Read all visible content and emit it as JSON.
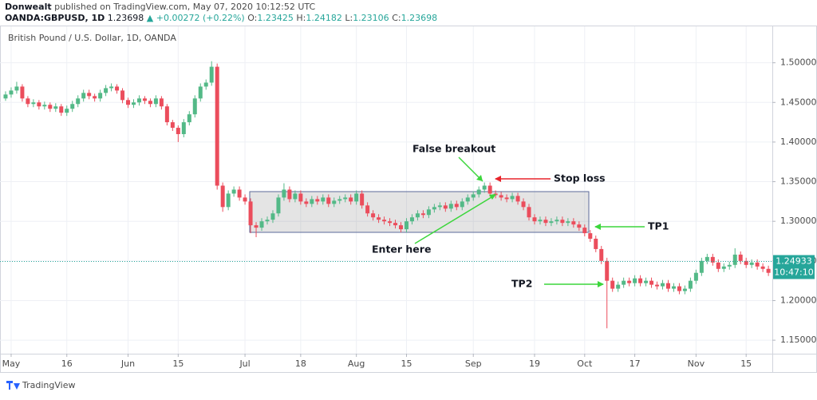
{
  "header": {
    "author": "Donwealt",
    "published": "published on TradingView.com, May 07, 2020 10:12:52 UTC",
    "symbol": "OANDA:GBPUSD, 1D",
    "last": "1.23698",
    "change": "▲ +0.00272 (+0.22%)",
    "o_label": "O:",
    "o": "1.23425",
    "h_label": "H:",
    "h": "1.24182",
    "l_label": "L:",
    "l": "1.23106",
    "c_label": "C:",
    "c": "1.23698"
  },
  "chart_data": {
    "type": "candlestick",
    "title": "British Pound / U.S. Dollar, 1D, OANDA",
    "up_color": "#53b987",
    "down_color": "#eb4d5c",
    "grid": true,
    "ylim": [
      1.136,
      1.549
    ],
    "yticks": [
      {
        "value": 1.5,
        "label": "1.50000"
      },
      {
        "value": 1.45,
        "label": "1.45000"
      },
      {
        "value": 1.4,
        "label": "1.40000"
      },
      {
        "value": 1.35,
        "label": "1.35000"
      },
      {
        "value": 1.3,
        "label": "1.30000"
      },
      {
        "value": 1.25,
        "label": "1.25000"
      },
      {
        "value": 1.2,
        "label": "1.20000"
      },
      {
        "value": 1.15,
        "label": "1.15000"
      }
    ],
    "xlim": [
      -1,
      137.7
    ],
    "xticks": [
      {
        "value": 1,
        "label": "May"
      },
      {
        "value": 11,
        "label": "16"
      },
      {
        "value": 22,
        "label": "Jun"
      },
      {
        "value": 31,
        "label": "15"
      },
      {
        "value": 43,
        "label": "Jul"
      },
      {
        "value": 53,
        "label": "18"
      },
      {
        "value": 63,
        "label": "Aug"
      },
      {
        "value": 72,
        "label": "15"
      },
      {
        "value": 84,
        "label": "Sep"
      },
      {
        "value": 95,
        "label": "19"
      },
      {
        "value": 104,
        "label": "Oct"
      },
      {
        "value": 113,
        "label": "17"
      },
      {
        "value": 124,
        "label": "Nov"
      },
      {
        "value": 133,
        "label": "15"
      }
    ],
    "last_price": {
      "value": 1.24933,
      "label": "1.24933"
    },
    "countdown": "10:47:10",
    "annotations": [
      "False breakout",
      "Stop loss",
      "TP1",
      "TP2",
      "Enter here"
    ],
    "ohlc": [
      [
        1.455,
        1.464,
        1.452,
        1.46
      ],
      [
        1.46,
        1.469,
        1.456,
        1.465
      ],
      [
        1.465,
        1.476,
        1.461,
        1.47
      ],
      [
        1.47,
        1.473,
        1.451,
        1.455
      ],
      [
        1.455,
        1.458,
        1.444,
        1.448
      ],
      [
        1.448,
        1.454,
        1.444,
        1.45
      ],
      [
        1.45,
        1.453,
        1.441,
        1.445
      ],
      [
        1.445,
        1.451,
        1.441,
        1.447
      ],
      [
        1.447,
        1.45,
        1.438,
        1.442
      ],
      [
        1.442,
        1.449,
        1.438,
        1.445
      ],
      [
        1.445,
        1.448,
        1.433,
        1.437
      ],
      [
        1.437,
        1.446,
        1.433,
        1.442
      ],
      [
        1.442,
        1.452,
        1.438,
        1.448
      ],
      [
        1.448,
        1.459,
        1.444,
        1.455
      ],
      [
        1.455,
        1.466,
        1.451,
        1.462
      ],
      [
        1.462,
        1.466,
        1.454,
        1.458
      ],
      [
        1.458,
        1.461,
        1.451,
        1.455
      ],
      [
        1.455,
        1.466,
        1.451,
        1.462
      ],
      [
        1.462,
        1.472,
        1.458,
        1.468
      ],
      [
        1.468,
        1.474,
        1.464,
        1.47
      ],
      [
        1.47,
        1.473,
        1.461,
        1.465
      ],
      [
        1.465,
        1.468,
        1.449,
        1.453
      ],
      [
        1.453,
        1.456,
        1.443,
        1.447
      ],
      [
        1.447,
        1.454,
        1.443,
        1.45
      ],
      [
        1.45,
        1.459,
        1.446,
        1.455
      ],
      [
        1.455,
        1.458,
        1.448,
        1.452
      ],
      [
        1.452,
        1.455,
        1.444,
        1.448
      ],
      [
        1.448,
        1.459,
        1.444,
        1.455
      ],
      [
        1.455,
        1.458,
        1.441,
        1.445
      ],
      [
        1.445,
        1.448,
        1.421,
        1.425
      ],
      [
        1.425,
        1.428,
        1.414,
        1.418
      ],
      [
        1.418,
        1.421,
        1.4,
        1.41
      ],
      [
        1.41,
        1.429,
        1.406,
        1.425
      ],
      [
        1.425,
        1.439,
        1.421,
        1.435
      ],
      [
        1.435,
        1.459,
        1.431,
        1.455
      ],
      [
        1.455,
        1.474,
        1.451,
        1.47
      ],
      [
        1.47,
        1.479,
        1.466,
        1.475
      ],
      [
        1.475,
        1.502,
        1.471,
        1.495
      ],
      [
        1.495,
        1.499,
        1.34,
        1.345
      ],
      [
        1.345,
        1.349,
        1.312,
        1.318
      ],
      [
        1.318,
        1.339,
        1.314,
        1.335
      ],
      [
        1.335,
        1.344,
        1.331,
        1.34
      ],
      [
        1.34,
        1.344,
        1.326,
        1.33
      ],
      [
        1.33,
        1.334,
        1.321,
        1.325
      ],
      [
        1.325,
        1.329,
        1.285,
        1.295
      ],
      [
        1.295,
        1.299,
        1.28,
        1.292
      ],
      [
        1.292,
        1.304,
        1.288,
        1.3
      ],
      [
        1.3,
        1.306,
        1.296,
        1.302
      ],
      [
        1.302,
        1.314,
        1.298,
        1.31
      ],
      [
        1.31,
        1.334,
        1.306,
        1.33
      ],
      [
        1.33,
        1.348,
        1.326,
        1.34
      ],
      [
        1.34,
        1.344,
        1.324,
        1.328
      ],
      [
        1.328,
        1.339,
        1.324,
        1.335
      ],
      [
        1.335,
        1.339,
        1.321,
        1.325
      ],
      [
        1.325,
        1.329,
        1.318,
        1.322
      ],
      [
        1.322,
        1.332,
        1.318,
        1.328
      ],
      [
        1.328,
        1.332,
        1.321,
        1.325
      ],
      [
        1.325,
        1.334,
        1.321,
        1.33
      ],
      [
        1.33,
        1.334,
        1.318,
        1.322
      ],
      [
        1.322,
        1.33,
        1.318,
        1.326
      ],
      [
        1.326,
        1.332,
        1.322,
        1.328
      ],
      [
        1.328,
        1.334,
        1.324,
        1.33
      ],
      [
        1.33,
        1.334,
        1.321,
        1.325
      ],
      [
        1.325,
        1.339,
        1.321,
        1.335
      ],
      [
        1.335,
        1.339,
        1.316,
        1.32
      ],
      [
        1.32,
        1.324,
        1.306,
        1.31
      ],
      [
        1.31,
        1.314,
        1.301,
        1.305
      ],
      [
        1.305,
        1.309,
        1.298,
        1.302
      ],
      [
        1.302,
        1.306,
        1.296,
        1.3
      ],
      [
        1.3,
        1.304,
        1.294,
        1.298
      ],
      [
        1.298,
        1.302,
        1.291,
        1.295
      ],
      [
        1.295,
        1.299,
        1.286,
        1.29
      ],
      [
        1.29,
        1.304,
        1.286,
        1.3
      ],
      [
        1.3,
        1.309,
        1.296,
        1.305
      ],
      [
        1.305,
        1.314,
        1.301,
        1.31
      ],
      [
        1.31,
        1.314,
        1.304,
        1.308
      ],
      [
        1.308,
        1.319,
        1.304,
        1.315
      ],
      [
        1.315,
        1.322,
        1.311,
        1.318
      ],
      [
        1.318,
        1.324,
        1.314,
        1.32
      ],
      [
        1.32,
        1.324,
        1.312,
        1.316
      ],
      [
        1.316,
        1.326,
        1.312,
        1.322
      ],
      [
        1.322,
        1.326,
        1.314,
        1.318
      ],
      [
        1.318,
        1.329,
        1.314,
        1.325
      ],
      [
        1.325,
        1.334,
        1.321,
        1.33
      ],
      [
        1.33,
        1.338,
        1.326,
        1.334
      ],
      [
        1.334,
        1.344,
        1.33,
        1.34
      ],
      [
        1.34,
        1.349,
        1.336,
        1.345
      ],
      [
        1.345,
        1.349,
        1.331,
        1.335
      ],
      [
        1.335,
        1.339,
        1.329,
        1.333
      ],
      [
        1.333,
        1.337,
        1.326,
        1.33
      ],
      [
        1.33,
        1.334,
        1.324,
        1.328
      ],
      [
        1.328,
        1.336,
        1.324,
        1.332
      ],
      [
        1.332,
        1.336,
        1.321,
        1.325
      ],
      [
        1.325,
        1.329,
        1.314,
        1.318
      ],
      [
        1.318,
        1.322,
        1.301,
        1.305
      ],
      [
        1.305,
        1.309,
        1.296,
        1.3
      ],
      [
        1.3,
        1.306,
        1.296,
        1.302
      ],
      [
        1.302,
        1.306,
        1.294,
        1.298
      ],
      [
        1.298,
        1.304,
        1.294,
        1.3
      ],
      [
        1.3,
        1.306,
        1.296,
        1.302
      ],
      [
        1.302,
        1.306,
        1.294,
        1.298
      ],
      [
        1.298,
        1.304,
        1.294,
        1.3
      ],
      [
        1.3,
        1.304,
        1.292,
        1.296
      ],
      [
        1.296,
        1.3,
        1.288,
        1.292
      ],
      [
        1.292,
        1.296,
        1.281,
        1.285
      ],
      [
        1.285,
        1.289,
        1.274,
        1.278
      ],
      [
        1.278,
        1.282,
        1.261,
        1.265
      ],
      [
        1.265,
        1.269,
        1.246,
        1.25
      ],
      [
        1.25,
        1.254,
        1.165,
        1.225
      ],
      [
        1.225,
        1.229,
        1.211,
        1.215
      ],
      [
        1.215,
        1.224,
        1.211,
        1.22
      ],
      [
        1.22,
        1.229,
        1.216,
        1.225
      ],
      [
        1.225,
        1.229,
        1.218,
        1.222
      ],
      [
        1.222,
        1.232,
        1.218,
        1.228
      ],
      [
        1.228,
        1.232,
        1.218,
        1.222
      ],
      [
        1.222,
        1.229,
        1.218,
        1.225
      ],
      [
        1.225,
        1.229,
        1.216,
        1.22
      ],
      [
        1.22,
        1.224,
        1.214,
        1.218
      ],
      [
        1.218,
        1.226,
        1.214,
        1.222
      ],
      [
        1.222,
        1.226,
        1.211,
        1.215
      ],
      [
        1.215,
        1.222,
        1.211,
        1.218
      ],
      [
        1.218,
        1.222,
        1.208,
        1.212
      ],
      [
        1.212,
        1.219,
        1.208,
        1.215
      ],
      [
        1.215,
        1.229,
        1.211,
        1.225
      ],
      [
        1.225,
        1.239,
        1.221,
        1.235
      ],
      [
        1.235,
        1.254,
        1.231,
        1.25
      ],
      [
        1.25,
        1.259,
        1.246,
        1.255
      ],
      [
        1.255,
        1.259,
        1.244,
        1.248
      ],
      [
        1.248,
        1.252,
        1.236,
        1.24
      ],
      [
        1.24,
        1.247,
        1.236,
        1.243
      ],
      [
        1.243,
        1.249,
        1.239,
        1.245
      ],
      [
        1.245,
        1.266,
        1.241,
        1.258
      ],
      [
        1.258,
        1.262,
        1.246,
        1.25
      ],
      [
        1.25,
        1.254,
        1.241,
        1.245
      ],
      [
        1.245,
        1.252,
        1.241,
        1.248
      ],
      [
        1.248,
        1.252,
        1.239,
        1.243
      ],
      [
        1.243,
        1.247,
        1.236,
        1.24
      ],
      [
        1.24,
        1.244,
        1.231,
        1.235
      ]
    ]
  },
  "footer": {
    "brand": "TradingView"
  }
}
